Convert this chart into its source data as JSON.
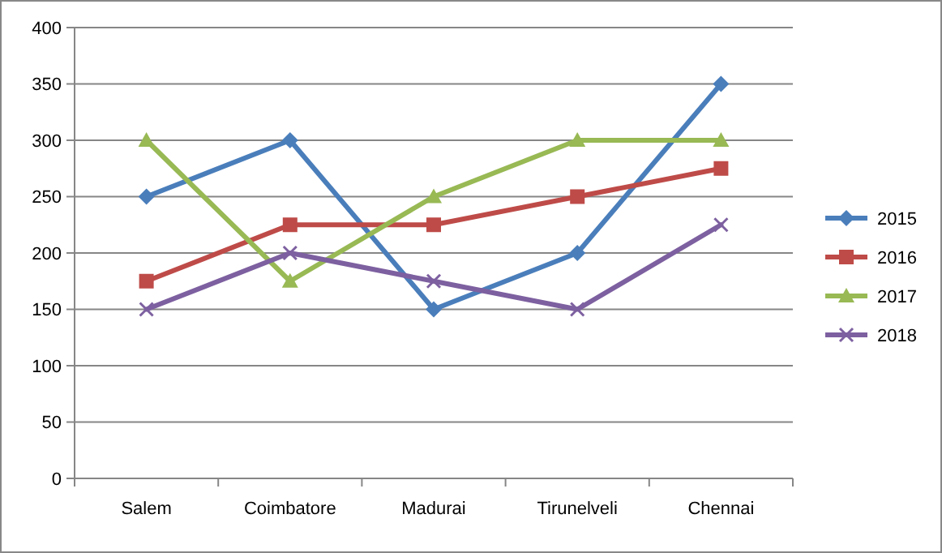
{
  "chart_data": {
    "type": "line",
    "categories": [
      "Salem",
      "Coimbatore",
      "Madurai",
      "Tirunelveli",
      "Chennai"
    ],
    "series": [
      {
        "name": "2015",
        "color": "#4a7ebb",
        "marker": "diamond",
        "values": [
          250,
          300,
          150,
          200,
          350
        ]
      },
      {
        "name": "2016",
        "color": "#be4b48",
        "marker": "square",
        "values": [
          175,
          225,
          225,
          250,
          275
        ]
      },
      {
        "name": "2017",
        "color": "#98b954",
        "marker": "triangle",
        "values": [
          300,
          175,
          250,
          300,
          300
        ]
      },
      {
        "name": "2018",
        "color": "#7d60a0",
        "marker": "cross",
        "values": [
          150,
          200,
          175,
          150,
          225
        ]
      }
    ],
    "ylim": [
      0,
      400
    ],
    "yticks": [
      0,
      50,
      100,
      150,
      200,
      250,
      300,
      350,
      400
    ],
    "grid": "y",
    "legend": "right"
  }
}
